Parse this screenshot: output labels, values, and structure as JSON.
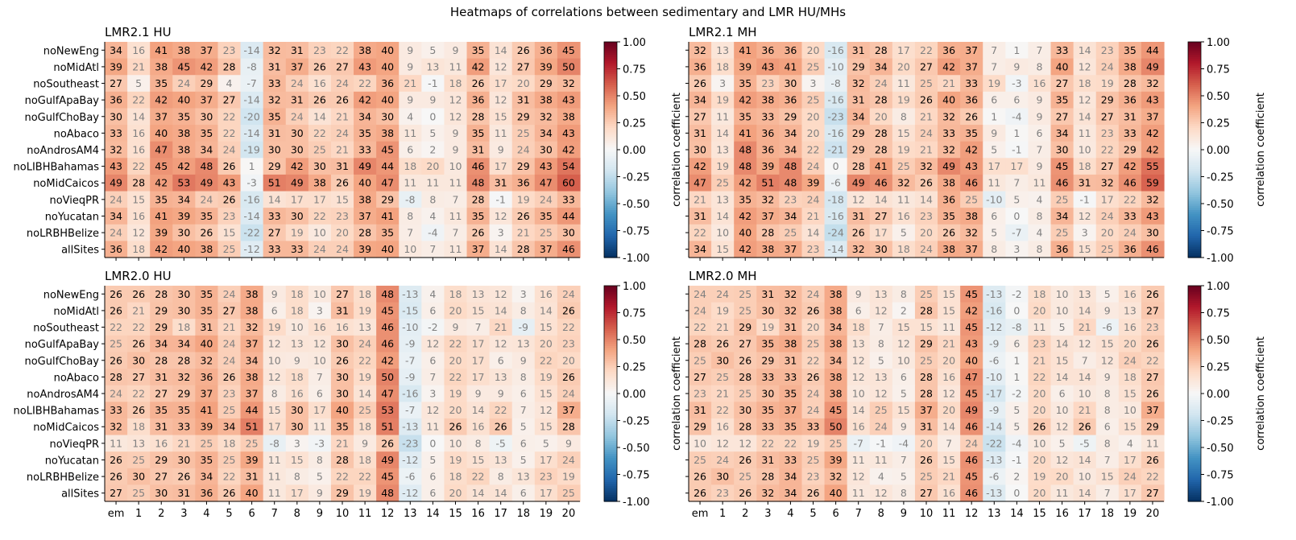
{
  "figure": {
    "suptitle": "Heatmaps of correlations between sedimentary and LMR HU/MHs",
    "colorbar_label": "correlation coefficient",
    "colorbar_ticks": [
      "1.00",
      "0.75",
      "0.50",
      "0.25",
      "0.00",
      "-0.25",
      "-0.50",
      "-0.75",
      "-1.00"
    ],
    "colormap": "RdBu_r",
    "colors": {
      "neg": "#053061",
      "zero": "#f7f7f7",
      "pos": "#67001f"
    }
  },
  "chart_data": [
    {
      "type": "heatmap",
      "title": "LMR2.1 HU",
      "x": [
        "em",
        "1",
        "2",
        "3",
        "4",
        "5",
        "6",
        "7",
        "8",
        "9",
        "10",
        "11",
        "12",
        "13",
        "14",
        "15",
        "16",
        "17",
        "18",
        "19",
        "20"
      ],
      "y": [
        "noNewEng",
        "noMidAtl",
        "noSoutheast",
        "noGulfApaBay",
        "noGulfChoBay",
        "noAbaco",
        "noAndrosAM4",
        "noLIBHBahamas",
        "noMidCaicos",
        "noVieqPR",
        "noYucatan",
        "noLRBHBelize",
        "allSites"
      ],
      "values": [
        [
          34,
          16,
          41,
          38,
          37,
          23,
          -14,
          32,
          31,
          23,
          22,
          38,
          40,
          9,
          5,
          9,
          35,
          14,
          26,
          36,
          45
        ],
        [
          39,
          21,
          38,
          45,
          42,
          28,
          -8,
          31,
          37,
          26,
          27,
          43,
          40,
          9,
          13,
          11,
          42,
          12,
          27,
          39,
          50
        ],
        [
          27,
          5,
          35,
          24,
          29,
          4,
          -7,
          33,
          24,
          16,
          24,
          22,
          36,
          21,
          -1,
          18,
          26,
          17,
          20,
          29,
          32
        ],
        [
          36,
          22,
          42,
          40,
          37,
          27,
          -14,
          32,
          31,
          26,
          26,
          42,
          40,
          9,
          9,
          12,
          36,
          12,
          31,
          38,
          43
        ],
        [
          30,
          14,
          37,
          35,
          30,
          22,
          -20,
          35,
          24,
          14,
          21,
          34,
          30,
          4,
          0,
          12,
          28,
          15,
          29,
          32,
          38
        ],
        [
          33,
          16,
          40,
          38,
          35,
          22,
          -14,
          31,
          30,
          22,
          24,
          35,
          38,
          11,
          5,
          9,
          35,
          11,
          25,
          34,
          43
        ],
        [
          32,
          16,
          47,
          38,
          34,
          24,
          -19,
          30,
          30,
          25,
          21,
          33,
          45,
          6,
          2,
          9,
          31,
          9,
          24,
          30,
          42
        ],
        [
          43,
          22,
          45,
          42,
          48,
          26,
          1,
          29,
          42,
          30,
          31,
          49,
          44,
          18,
          20,
          10,
          46,
          17,
          29,
          43,
          54
        ],
        [
          49,
          28,
          42,
          53,
          49,
          43,
          -3,
          51,
          49,
          38,
          26,
          40,
          47,
          11,
          11,
          11,
          48,
          31,
          36,
          47,
          60
        ],
        [
          24,
          15,
          35,
          34,
          24,
          26,
          -16,
          14,
          17,
          17,
          15,
          38,
          29,
          -8,
          8,
          7,
          28,
          -1,
          19,
          24,
          33
        ],
        [
          34,
          16,
          41,
          39,
          35,
          23,
          -14,
          33,
          30,
          22,
          23,
          37,
          41,
          8,
          4,
          11,
          35,
          12,
          26,
          35,
          44
        ],
        [
          24,
          12,
          39,
          30,
          26,
          15,
          -22,
          27,
          19,
          10,
          20,
          28,
          35,
          7,
          -4,
          7,
          26,
          3,
          21,
          25,
          30
        ],
        [
          36,
          18,
          42,
          40,
          38,
          25,
          -12,
          33,
          33,
          24,
          24,
          39,
          40,
          10,
          7,
          11,
          37,
          14,
          28,
          37,
          46
        ]
      ],
      "vmin": -1,
      "vmax": 1,
      "xlabel": "",
      "ylabel": ""
    },
    {
      "type": "heatmap",
      "title": "LMR2.1 MH",
      "x": [
        "em",
        "1",
        "2",
        "3",
        "4",
        "5",
        "6",
        "7",
        "8",
        "9",
        "10",
        "11",
        "12",
        "13",
        "14",
        "15",
        "16",
        "17",
        "18",
        "19",
        "20"
      ],
      "y": [
        "noNewEng",
        "noMidAtl",
        "noSoutheast",
        "noGulfApaBay",
        "noGulfChoBay",
        "noAbaco",
        "noAndrosAM4",
        "noLIBHBahamas",
        "noMidCaicos",
        "noVieqPR",
        "noYucatan",
        "noLRBHBelize",
        "allSites"
      ],
      "values": [
        [
          32,
          13,
          41,
          36,
          36,
          20,
          -16,
          31,
          28,
          17,
          22,
          36,
          37,
          7,
          1,
          7,
          33,
          14,
          23,
          35,
          44
        ],
        [
          36,
          18,
          39,
          43,
          41,
          25,
          -10,
          29,
          34,
          20,
          27,
          42,
          37,
          7,
          9,
          8,
          40,
          12,
          24,
          38,
          49
        ],
        [
          26,
          3,
          35,
          23,
          30,
          3,
          -8,
          32,
          24,
          11,
          25,
          21,
          33,
          19,
          -3,
          16,
          27,
          18,
          19,
          28,
          32
        ],
        [
          34,
          19,
          42,
          38,
          36,
          25,
          -16,
          31,
          28,
          19,
          26,
          40,
          36,
          6,
          6,
          9,
          35,
          12,
          29,
          36,
          43
        ],
        [
          27,
          11,
          35,
          33,
          29,
          20,
          -23,
          34,
          20,
          8,
          21,
          32,
          26,
          1,
          -4,
          9,
          27,
          14,
          27,
          31,
          37
        ],
        [
          31,
          14,
          41,
          36,
          34,
          20,
          -16,
          29,
          28,
          15,
          24,
          33,
          35,
          9,
          1,
          6,
          34,
          11,
          23,
          33,
          42
        ],
        [
          30,
          13,
          48,
          36,
          34,
          22,
          -21,
          29,
          28,
          19,
          21,
          32,
          42,
          5,
          -1,
          7,
          30,
          10,
          22,
          29,
          42
        ],
        [
          42,
          19,
          48,
          39,
          48,
          24,
          0,
          28,
          41,
          25,
          32,
          49,
          43,
          17,
          17,
          9,
          45,
          18,
          27,
          42,
          55
        ],
        [
          47,
          25,
          42,
          51,
          48,
          39,
          -6,
          49,
          46,
          32,
          26,
          38,
          46,
          11,
          7,
          11,
          46,
          31,
          32,
          46,
          59
        ],
        [
          21,
          13,
          35,
          32,
          23,
          24,
          -18,
          12,
          14,
          11,
          14,
          36,
          25,
          -10,
          5,
          4,
          25,
          -1,
          17,
          22,
          32
        ],
        [
          31,
          14,
          42,
          37,
          34,
          21,
          -16,
          31,
          27,
          16,
          23,
          35,
          38,
          6,
          0,
          8,
          34,
          12,
          24,
          33,
          43
        ],
        [
          22,
          10,
          40,
          28,
          25,
          14,
          -24,
          26,
          17,
          5,
          20,
          26,
          32,
          5,
          -7,
          4,
          25,
          3,
          20,
          24,
          30
        ],
        [
          34,
          15,
          42,
          38,
          37,
          23,
          -14,
          32,
          30,
          18,
          24,
          38,
          37,
          8,
          3,
          8,
          36,
          15,
          25,
          36,
          46
        ]
      ],
      "vmin": -1,
      "vmax": 1,
      "xlabel": "",
      "ylabel": ""
    },
    {
      "type": "heatmap",
      "title": "LMR2.0 HU",
      "x": [
        "em",
        "1",
        "2",
        "3",
        "4",
        "5",
        "6",
        "7",
        "8",
        "9",
        "10",
        "11",
        "12",
        "13",
        "14",
        "15",
        "16",
        "17",
        "18",
        "19",
        "20"
      ],
      "y": [
        "noNewEng",
        "noMidAtl",
        "noSoutheast",
        "noGulfApaBay",
        "noGulfChoBay",
        "noAbaco",
        "noAndrosAM4",
        "noLIBHBahamas",
        "noMidCaicos",
        "noVieqPR",
        "noYucatan",
        "noLRBHBelize",
        "allSites"
      ],
      "values": [
        [
          26,
          26,
          28,
          30,
          35,
          24,
          38,
          9,
          18,
          10,
          27,
          18,
          48,
          -13,
          4,
          18,
          13,
          12,
          3,
          16,
          24
        ],
        [
          26,
          21,
          29,
          30,
          35,
          27,
          38,
          6,
          18,
          3,
          31,
          19,
          45,
          -15,
          6,
          20,
          15,
          14,
          8,
          14,
          26
        ],
        [
          22,
          22,
          29,
          18,
          31,
          21,
          32,
          19,
          10,
          16,
          16,
          13,
          46,
          -10,
          -2,
          9,
          7,
          21,
          -9,
          15,
          22
        ],
        [
          25,
          26,
          34,
          34,
          40,
          24,
          37,
          12,
          13,
          12,
          30,
          24,
          46,
          -9,
          12,
          22,
          17,
          12,
          13,
          20,
          23
        ],
        [
          26,
          30,
          28,
          28,
          32,
          24,
          34,
          10,
          9,
          10,
          26,
          22,
          42,
          -7,
          6,
          20,
          17,
          6,
          9,
          22,
          20
        ],
        [
          28,
          27,
          31,
          32,
          36,
          26,
          38,
          12,
          18,
          7,
          30,
          19,
          50,
          -9,
          7,
          22,
          17,
          13,
          8,
          19,
          26
        ],
        [
          24,
          22,
          27,
          29,
          37,
          23,
          37,
          8,
          16,
          6,
          30,
          14,
          47,
          -16,
          3,
          19,
          9,
          9,
          6,
          15,
          24
        ],
        [
          33,
          26,
          35,
          35,
          41,
          25,
          44,
          15,
          30,
          17,
          40,
          25,
          53,
          -7,
          12,
          20,
          14,
          22,
          7,
          12,
          37
        ],
        [
          32,
          18,
          31,
          33,
          39,
          34,
          51,
          17,
          30,
          11,
          35,
          18,
          51,
          -13,
          11,
          26,
          16,
          26,
          5,
          15,
          28
        ],
        [
          11,
          13,
          16,
          21,
          25,
          18,
          25,
          -8,
          3,
          -3,
          21,
          9,
          26,
          -23,
          0,
          10,
          8,
          -5,
          6,
          5,
          9
        ],
        [
          26,
          25,
          29,
          30,
          35,
          25,
          39,
          11,
          15,
          8,
          28,
          18,
          49,
          -12,
          5,
          19,
          15,
          13,
          5,
          17,
          24
        ],
        [
          26,
          30,
          27,
          26,
          34,
          22,
          31,
          11,
          8,
          5,
          22,
          22,
          45,
          -6,
          6,
          18,
          22,
          8,
          13,
          23,
          19
        ],
        [
          27,
          25,
          30,
          31,
          36,
          26,
          40,
          11,
          17,
          9,
          29,
          19,
          48,
          -12,
          6,
          20,
          14,
          14,
          6,
          17,
          25
        ]
      ],
      "vmin": -1,
      "vmax": 1,
      "xlabel": "",
      "ylabel": ""
    },
    {
      "type": "heatmap",
      "title": "LMR2.0 MH",
      "x": [
        "em",
        "1",
        "2",
        "3",
        "4",
        "5",
        "6",
        "7",
        "8",
        "9",
        "10",
        "11",
        "12",
        "13",
        "14",
        "15",
        "16",
        "17",
        "18",
        "19",
        "20"
      ],
      "y": [
        "noNewEng",
        "noMidAtl",
        "noSoutheast",
        "noGulfApaBay",
        "noGulfChoBay",
        "noAbaco",
        "noAndrosAM4",
        "noLIBHBahamas",
        "noMidCaicos",
        "noVieqPR",
        "noYucatan",
        "noLRBHBelize",
        "allSites"
      ],
      "values": [
        [
          24,
          24,
          25,
          31,
          32,
          24,
          38,
          9,
          13,
          8,
          25,
          15,
          45,
          -13,
          -2,
          18,
          10,
          13,
          5,
          16,
          26
        ],
        [
          24,
          19,
          25,
          30,
          32,
          26,
          38,
          6,
          12,
          2,
          28,
          15,
          42,
          -16,
          0,
          20,
          10,
          14,
          9,
          13,
          27
        ],
        [
          22,
          21,
          29,
          19,
          31,
          20,
          34,
          18,
          7,
          15,
          15,
          11,
          45,
          -12,
          -8,
          11,
          5,
          21,
          -6,
          16,
          23
        ],
        [
          28,
          26,
          27,
          35,
          38,
          25,
          38,
          13,
          8,
          12,
          29,
          21,
          43,
          -9,
          6,
          23,
          14,
          12,
          15,
          20,
          26
        ],
        [
          25,
          30,
          26,
          29,
          31,
          22,
          34,
          12,
          5,
          10,
          25,
          20,
          40,
          -6,
          1,
          21,
          15,
          7,
          12,
          24,
          22
        ],
        [
          27,
          25,
          28,
          33,
          33,
          26,
          38,
          12,
          13,
          6,
          28,
          16,
          47,
          -10,
          1,
          22,
          14,
          14,
          9,
          18,
          27
        ],
        [
          23,
          21,
          25,
          30,
          35,
          24,
          38,
          10,
          12,
          5,
          28,
          12,
          45,
          -17,
          -2,
          20,
          6,
          10,
          8,
          15,
          26
        ],
        [
          31,
          22,
          30,
          35,
          37,
          24,
          45,
          14,
          25,
          15,
          37,
          20,
          49,
          -9,
          5,
          20,
          10,
          21,
          8,
          10,
          37
        ],
        [
          29,
          16,
          28,
          33,
          35,
          33,
          50,
          16,
          24,
          9,
          31,
          14,
          46,
          -14,
          5,
          26,
          12,
          26,
          6,
          15,
          29
        ],
        [
          10,
          12,
          12,
          22,
          22,
          19,
          25,
          -7,
          -1,
          -4,
          20,
          7,
          24,
          -22,
          -4,
          10,
          5,
          -5,
          8,
          4,
          11
        ],
        [
          25,
          24,
          26,
          31,
          33,
          25,
          39,
          11,
          11,
          7,
          26,
          15,
          46,
          -13,
          -1,
          20,
          12,
          14,
          7,
          17,
          26
        ],
        [
          26,
          30,
          25,
          28,
          34,
          23,
          32,
          12,
          4,
          5,
          25,
          21,
          45,
          -6,
          2,
          19,
          20,
          10,
          15,
          24,
          22
        ],
        [
          26,
          23,
          26,
          32,
          34,
          26,
          40,
          11,
          12,
          8,
          27,
          16,
          46,
          -13,
          0,
          20,
          11,
          14,
          7,
          17,
          27
        ]
      ],
      "vmin": -1,
      "vmax": 1,
      "xlabel": "",
      "ylabel": ""
    }
  ]
}
